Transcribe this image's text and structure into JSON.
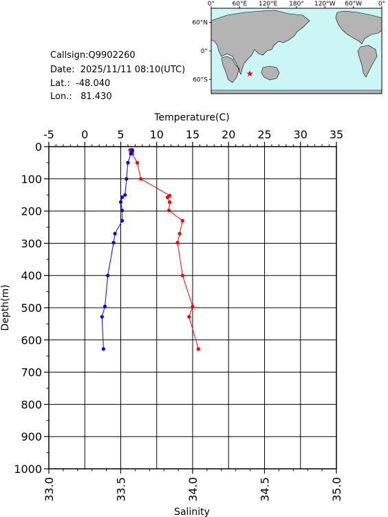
{
  "info": {
    "callsign": "Callsign:Q9902260",
    "date": "Date:  2025/11/11 08:10(UTC)",
    "lat": "Lat.:  -48.040",
    "lon": "Lon.:   81.430"
  },
  "map": {
    "lon_labels": [
      "0°",
      "60°E",
      "120°E",
      "180°",
      "120°W",
      "60°W",
      "0°"
    ],
    "lat_labels": [
      "60°N",
      "0°",
      "60°S"
    ],
    "ocean_color": "#ccf5f5",
    "land_color": "#b4b4b4",
    "marker": {
      "lon": 81.43,
      "lat": -48.04,
      "color": "#ff0000",
      "icon": "star-icon"
    }
  },
  "chart_data": {
    "type": "line",
    "temperature_axis": {
      "label": "Temperature(C)",
      "range": [
        -5,
        35
      ],
      "ticks": [
        "-5",
        "0",
        "5",
        "10",
        "15",
        "20",
        "25",
        "30",
        "35"
      ]
    },
    "salinity_axis": {
      "label": "Salinity",
      "range": [
        33.0,
        35.0
      ],
      "ticks": [
        "33.0",
        "33.5",
        "34.0",
        "34.5",
        "35.0"
      ]
    },
    "depth_axis": {
      "label": "Depth(m)",
      "range": [
        0,
        1000
      ],
      "ticks": [
        "0",
        "100",
        "200",
        "300",
        "400",
        "500",
        "600",
        "700",
        "800",
        "900",
        "1000"
      ],
      "inverted": true
    },
    "grid": true,
    "series": [
      {
        "name": "Temperature",
        "axis": "temperature",
        "color": "#ff0000",
        "points": [
          [
            6.3,
            10
          ],
          [
            6.4,
            15
          ],
          [
            6.6,
            22
          ],
          [
            7.3,
            50
          ],
          [
            7.8,
            100
          ],
          [
            11.8,
            152
          ],
          [
            11.5,
            157
          ],
          [
            11.8,
            172
          ],
          [
            11.7,
            198
          ],
          [
            13.6,
            230
          ],
          [
            13.2,
            270
          ],
          [
            12.9,
            298
          ],
          [
            13.6,
            400
          ],
          [
            15.0,
            496
          ],
          [
            14.5,
            528
          ],
          [
            15.8,
            628
          ]
        ]
      },
      {
        "name": "Salinity",
        "axis": "salinity",
        "color": "#0000ff",
        "points": [
          [
            33.58,
            10
          ],
          [
            33.58,
            15
          ],
          [
            33.57,
            22
          ],
          [
            33.55,
            50
          ],
          [
            33.54,
            100
          ],
          [
            33.53,
            150
          ],
          [
            33.51,
            157
          ],
          [
            33.5,
            172
          ],
          [
            33.51,
            198
          ],
          [
            33.51,
            230
          ],
          [
            33.46,
            270
          ],
          [
            33.45,
            298
          ],
          [
            33.41,
            400
          ],
          [
            33.39,
            496
          ],
          [
            33.37,
            528
          ],
          [
            33.38,
            628
          ]
        ]
      }
    ]
  }
}
